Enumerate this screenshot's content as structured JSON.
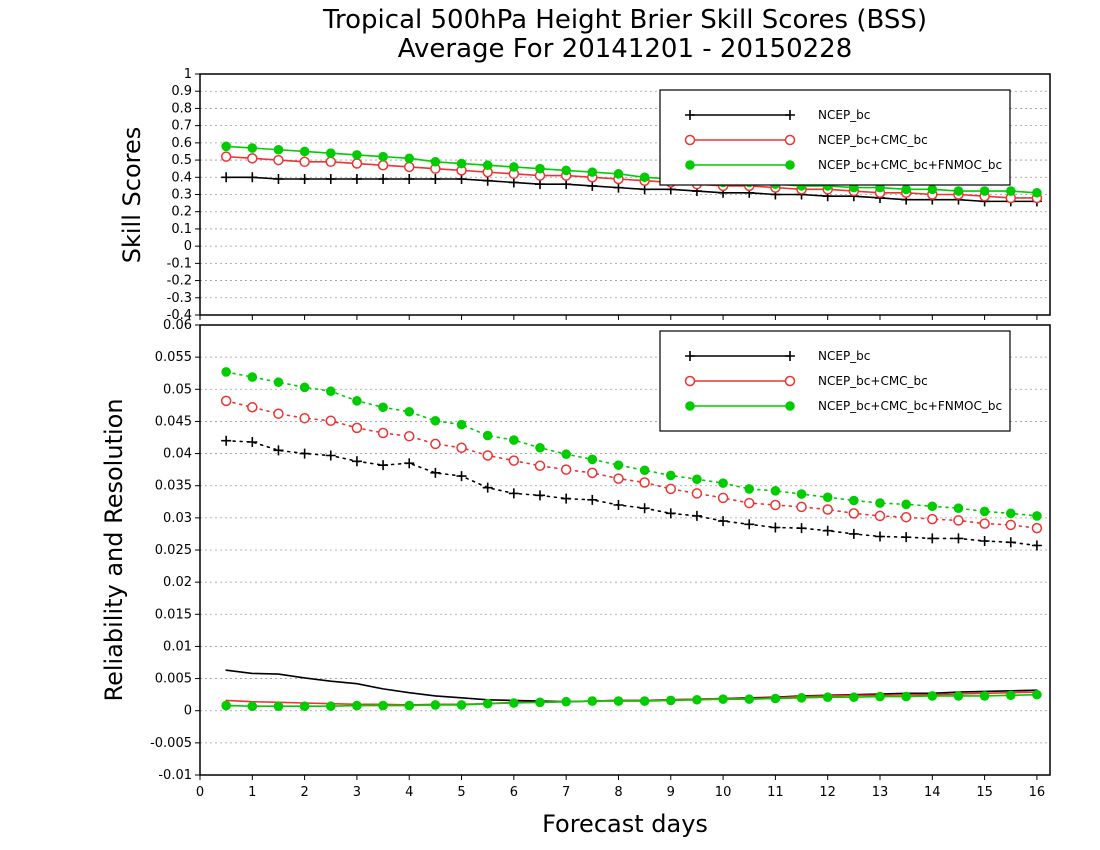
{
  "title_line1": "Tropical 500hPa Height Brier Skill Scores (BSS)",
  "title_line2": "Average For 20141201 - 20150228",
  "xlabel": "Forecast days",
  "colors": {
    "ncep": "#000000",
    "cmc": "#ee3333",
    "fnmoc": "#00cc00"
  },
  "legend_labels": [
    "NCEP_bc",
    "NCEP_bc+CMC_bc",
    "NCEP_bc+CMC_bc+FNMOC_bc"
  ],
  "chart_data": [
    {
      "type": "line",
      "ylabel": "Skill Scores",
      "xlim": [
        0,
        16.25
      ],
      "ylim": [
        -0.4,
        1
      ],
      "x_ticks": [
        0,
        1,
        2,
        3,
        4,
        5,
        6,
        7,
        8,
        9,
        10,
        11,
        12,
        13,
        14,
        15,
        16
      ],
      "y_ticks": [
        "-0.4",
        "-0.3",
        "-0.2",
        "-0.1",
        "0",
        "0.1",
        "0.2",
        "0.3",
        "0.4",
        "0.5",
        "0.6",
        "0.7",
        "0.8",
        "0.9",
        "1"
      ],
      "grid": true,
      "legend_position": "top-right",
      "x": [
        0.5,
        1,
        1.5,
        2,
        2.5,
        3,
        3.5,
        4,
        4.5,
        5,
        5.5,
        6,
        6.5,
        7,
        7.5,
        8,
        8.5,
        9,
        9.5,
        10,
        10.5,
        11,
        11.5,
        12,
        12.5,
        13,
        13.5,
        14,
        14.5,
        15,
        15.5,
        16
      ],
      "series": [
        {
          "name": "NCEP_bc",
          "style": "solid",
          "marker": "plus",
          "values": [
            0.4,
            0.4,
            0.39,
            0.39,
            0.39,
            0.39,
            0.39,
            0.39,
            0.39,
            0.39,
            0.38,
            0.37,
            0.36,
            0.36,
            0.35,
            0.34,
            0.33,
            0.33,
            0.32,
            0.31,
            0.31,
            0.3,
            0.3,
            0.29,
            0.29,
            0.28,
            0.27,
            0.27,
            0.27,
            0.26,
            0.26,
            0.26
          ]
        },
        {
          "name": "NCEP_bc+CMC_bc",
          "style": "solid",
          "marker": "open-circle",
          "values": [
            0.52,
            0.51,
            0.5,
            0.49,
            0.49,
            0.48,
            0.47,
            0.46,
            0.45,
            0.44,
            0.43,
            0.42,
            0.41,
            0.41,
            0.4,
            0.39,
            0.38,
            0.37,
            0.36,
            0.35,
            0.35,
            0.34,
            0.33,
            0.33,
            0.32,
            0.31,
            0.31,
            0.3,
            0.3,
            0.29,
            0.28,
            0.28
          ]
        },
        {
          "name": "NCEP_bc+CMC_bc+FNMOC_bc",
          "style": "solid",
          "marker": "filled-circle",
          "values": [
            0.58,
            0.57,
            0.56,
            0.55,
            0.54,
            0.53,
            0.52,
            0.51,
            0.49,
            0.48,
            0.47,
            0.46,
            0.45,
            0.44,
            0.43,
            0.42,
            0.4,
            0.39,
            0.38,
            0.37,
            0.37,
            0.36,
            0.35,
            0.35,
            0.34,
            0.34,
            0.33,
            0.33,
            0.32,
            0.32,
            0.32,
            0.31
          ]
        }
      ]
    },
    {
      "type": "line",
      "ylabel": "Reliability and Resolution",
      "xlabel": "Forecast days",
      "xlim": [
        0,
        16.25
      ],
      "ylim": [
        -0.01,
        0.06
      ],
      "x_ticks": [
        0,
        1,
        2,
        3,
        4,
        5,
        6,
        7,
        8,
        9,
        10,
        11,
        12,
        13,
        14,
        15,
        16
      ],
      "y_ticks": [
        "-0.01",
        "-0.005",
        "0",
        "0.005",
        "0.01",
        "0.015",
        "0.02",
        "0.025",
        "0.03",
        "0.035",
        "0.04",
        "0.045",
        "0.05",
        "0.055",
        "0.06"
      ],
      "grid": true,
      "legend_position": "top-right",
      "x": [
        0.5,
        1,
        1.5,
        2,
        2.5,
        3,
        3.5,
        4,
        4.5,
        5,
        5.5,
        6,
        6.5,
        7,
        7.5,
        8,
        8.5,
        9,
        9.5,
        10,
        10.5,
        11,
        11.5,
        12,
        12.5,
        13,
        13.5,
        14,
        14.5,
        15,
        15.5,
        16
      ],
      "series": [
        {
          "name": "NCEP_bc",
          "style": "dotted",
          "marker": "plus",
          "values": [
            0.042,
            0.0418,
            0.0405,
            0.04,
            0.0397,
            0.0388,
            0.0382,
            0.0385,
            0.037,
            0.0365,
            0.0347,
            0.0338,
            0.0335,
            0.033,
            0.0328,
            0.032,
            0.0315,
            0.0307,
            0.0303,
            0.0295,
            0.029,
            0.0285,
            0.0284,
            0.028,
            0.0275,
            0.0271,
            0.027,
            0.0268,
            0.0268,
            0.0264,
            0.0262,
            0.0257
          ]
        },
        {
          "name": "NCEP_bc+CMC_bc",
          "style": "dotted",
          "marker": "open-circle",
          "values": [
            0.0482,
            0.0472,
            0.0462,
            0.0455,
            0.0451,
            0.044,
            0.0432,
            0.0427,
            0.0415,
            0.0409,
            0.0397,
            0.0389,
            0.0381,
            0.0375,
            0.037,
            0.0361,
            0.0355,
            0.0345,
            0.0338,
            0.0331,
            0.0323,
            0.032,
            0.0317,
            0.0313,
            0.0307,
            0.0303,
            0.0301,
            0.0298,
            0.0296,
            0.0291,
            0.0289,
            0.0284
          ]
        },
        {
          "name": "NCEP_bc+CMC_bc+FNMOC_bc",
          "style": "dotted",
          "marker": "filled-circle",
          "values": [
            0.0527,
            0.0519,
            0.0511,
            0.0503,
            0.0497,
            0.0482,
            0.0472,
            0.0465,
            0.0451,
            0.0445,
            0.0428,
            0.0421,
            0.0409,
            0.0399,
            0.0391,
            0.0382,
            0.0374,
            0.0366,
            0.036,
            0.0354,
            0.0345,
            0.0342,
            0.0337,
            0.0332,
            0.0327,
            0.0323,
            0.0321,
            0.0318,
            0.0315,
            0.031,
            0.0307,
            0.0303
          ]
        },
        {
          "name": "NCEP_bc",
          "style": "solid",
          "marker": "none",
          "values": [
            0.0063,
            0.0058,
            0.0057,
            0.0051,
            0.0046,
            0.0042,
            0.0034,
            0.0028,
            0.0023,
            0.002,
            0.0017,
            0.0016,
            0.0015,
            0.0014,
            0.0015,
            0.0016,
            0.0016,
            0.0017,
            0.0018,
            0.0019,
            0.002,
            0.0021,
            0.0023,
            0.0024,
            0.0025,
            0.0026,
            0.0027,
            0.0027,
            0.0029,
            0.003,
            0.0031,
            0.0032
          ]
        },
        {
          "name": "NCEP_bc+CMC_bc",
          "style": "solid",
          "marker": "none",
          "values": [
            0.0016,
            0.0014,
            0.0013,
            0.0012,
            0.0011,
            0.001,
            0.001,
            0.0009,
            0.001,
            0.001,
            0.0011,
            0.0013,
            0.0013,
            0.0014,
            0.0015,
            0.0016,
            0.0016,
            0.0017,
            0.0018,
            0.0019,
            0.0019,
            0.002,
            0.0022,
            0.0023,
            0.0024,
            0.0024,
            0.0025,
            0.0025,
            0.0026,
            0.0027,
            0.0028,
            0.0029
          ]
        },
        {
          "name": "NCEP_bc+CMC_bc+FNMOC_bc",
          "style": "solid",
          "marker": "filled-circle",
          "values": [
            0.0008,
            0.0007,
            0.0007,
            0.0007,
            0.0007,
            0.0008,
            0.0008,
            0.0008,
            0.0009,
            0.0009,
            0.0011,
            0.0012,
            0.0013,
            0.0014,
            0.0015,
            0.0015,
            0.0015,
            0.0016,
            0.0017,
            0.0018,
            0.0018,
            0.0019,
            0.002,
            0.0021,
            0.0021,
            0.0022,
            0.0022,
            0.0023,
            0.0023,
            0.0023,
            0.0024,
            0.0025
          ]
        }
      ]
    }
  ]
}
